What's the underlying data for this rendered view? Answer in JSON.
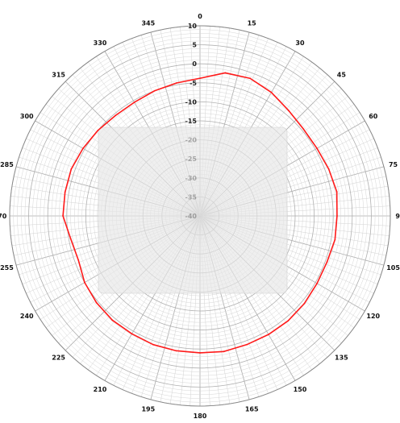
{
  "chart_data": {
    "type": "polar-line",
    "title": "",
    "angle_ticks": [
      0,
      15,
      30,
      45,
      60,
      75,
      90,
      105,
      120,
      135,
      150,
      165,
      180,
      195,
      210,
      225,
      240,
      255,
      270,
      285,
      300,
      315,
      330,
      345
    ],
    "angle_tick_labels": [
      "0",
      "15",
      "30",
      "45",
      "60",
      "75",
      "90",
      "105",
      "120",
      "135",
      "150",
      "165",
      "180",
      "195",
      "210",
      "225",
      "240",
      "255",
      "270",
      "285",
      "300",
      "315",
      "330",
      "345"
    ],
    "angle_direction": "clockwise",
    "zero_location": "top",
    "radial_range": [
      -40,
      10
    ],
    "radial_ticks": [
      10,
      5,
      0,
      -5,
      -10,
      -15,
      -20,
      -25,
      -30,
      -35,
      -40
    ],
    "radial_tick_labels": [
      "10",
      "5",
      "0",
      "-5",
      "-10",
      "-15",
      "-20",
      "-25",
      "-30",
      "-35",
      "-40"
    ],
    "grid": true,
    "legend": "none",
    "colors": {
      "series": "#ff1a1a",
      "grid": "#bdbdbd",
      "overlay": "#e6e6e6"
    },
    "series": [
      {
        "angles": [
          0,
          10,
          20,
          30,
          40,
          50,
          60,
          70,
          80,
          90,
          100,
          110,
          120,
          130,
          140,
          150,
          160,
          170,
          180,
          190,
          200,
          210,
          220,
          230,
          240,
          250,
          260,
          270,
          280,
          290,
          300,
          310,
          320,
          330,
          340,
          350
        ],
        "values": [
          -3.8,
          -1.8,
          -1.5,
          -2.5,
          -3.8,
          -4.5,
          -4.5,
          -4,
          -3.5,
          -4,
          -4,
          -4.5,
          -4.5,
          -4.2,
          -4,
          -4,
          -4,
          -3.8,
          -4,
          -4,
          -4,
          -4.2,
          -4.2,
          -4.5,
          -5,
          -6,
          -5.5,
          -4,
          -4,
          -4,
          -4.5,
          -5,
          -5.5,
          -5.5,
          -5,
          -4.5
        ]
      }
    ]
  }
}
